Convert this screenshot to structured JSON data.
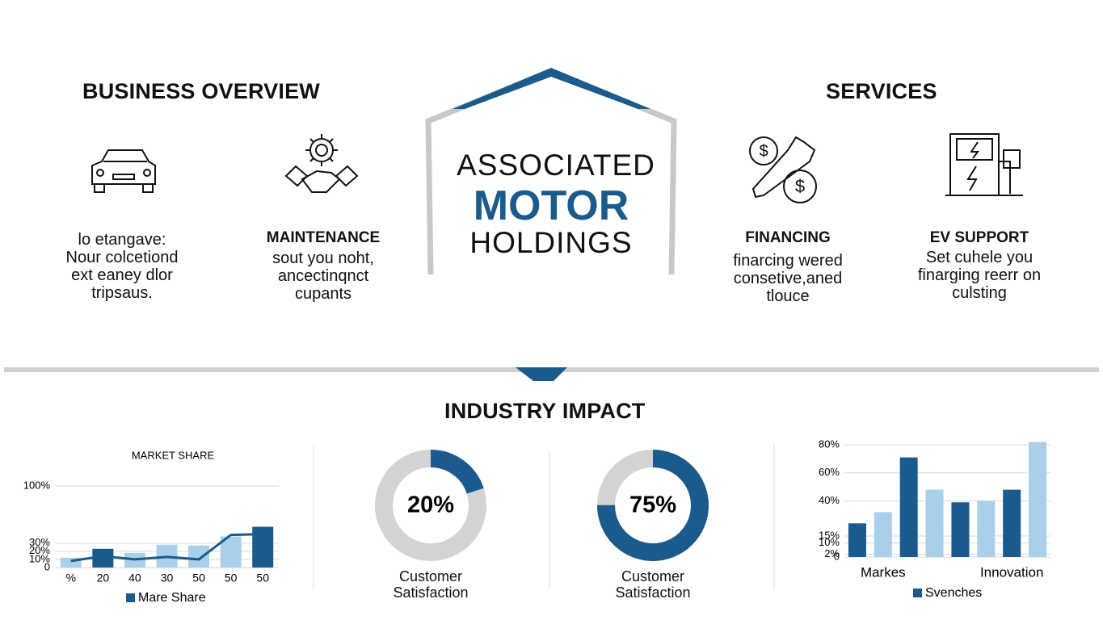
{
  "header": {
    "left_title": "BUSINESS OVERVIEW",
    "right_title": "SERVICES",
    "logo": [
      "ASSOCIATED",
      "MOTOR",
      "HOLDINGS"
    ]
  },
  "business_items": [
    {
      "lines": [
        "lo etangave:",
        "Nour colcetiond",
        "ext eaney dlor",
        "tripsaus."
      ]
    },
    {
      "title": "MAINTENANCE",
      "lines": [
        "sout you noht,",
        "ancectinqnct",
        "cupants"
      ]
    }
  ],
  "services": [
    {
      "title": "FINANCING",
      "lines": [
        "finarcing wered",
        "consetive,aned",
        "tlouce"
      ]
    },
    {
      "title": "EV SUPPORT",
      "lines": [
        "Set cuhele you",
        "finarging reerr on",
        "culsting"
      ]
    }
  ],
  "section_title": "INDUSTRY IMPACT",
  "chart_data": [
    {
      "type": "bar",
      "title": "MARKET SHARE",
      "categories": [
        "%",
        "20",
        "40",
        "30",
        "50",
        "50",
        "50"
      ],
      "series": [
        {
          "name": "Mare Share",
          "color": "#1b5a8c",
          "values": [
            12,
            23,
            18,
            28,
            27,
            38,
            50
          ],
          "colors": [
            "#a9d0ea",
            "#1b5a8c",
            "#a9d0ea",
            "#a9d0ea",
            "#a9d0ea",
            "#a9d0ea",
            "#1b5a8c"
          ]
        },
        {
          "type": "line",
          "color": "#1b5a8c",
          "values": [
            8,
            14,
            10,
            13,
            10,
            40,
            41
          ]
        }
      ],
      "ylim": [
        0,
        100
      ],
      "yticks": [
        0,
        {
          "value": 10,
          "label": "10%"
        },
        {
          "value": 20,
          "label": "20%"
        },
        {
          "value": 30,
          "label": "30%"
        },
        {
          "value": 100,
          "label": "100%"
        }
      ],
      "grid": true
    },
    {
      "type": "donut",
      "values": [
        20
      ],
      "value_labels": [
        "20%"
      ],
      "label": "Customer Satisfaction",
      "color": "#1b5a8c"
    },
    {
      "type": "donut",
      "values": [
        75
      ],
      "value_labels": [
        "75%"
      ],
      "label": "Customer Satisfaction",
      "color": "#1b5a8c"
    },
    {
      "type": "bar",
      "categories": [
        null,
        "Markes",
        null,
        null,
        null,
        null,
        "Innovation",
        null
      ],
      "series": [
        {
          "name": "Svenches",
          "color": "#1b5a8c",
          "values": [
            24,
            32,
            71,
            48,
            39,
            40,
            48,
            82
          ],
          "colors": [
            "#1b5a8c",
            "#a9d0ea",
            "#1b5a8c",
            "#a9d0ea",
            "#1b5a8c",
            "#a9d0ea",
            "#1b5a8c",
            "#a9d0ea"
          ]
        }
      ],
      "ylim": [
        0,
        80
      ],
      "yticks": [
        0,
        {
          "value": 2,
          "label": "2%"
        },
        {
          "value": 15,
          "label": "15%"
        },
        {
          "value": 10,
          "label": "10%"
        },
        {
          "value": 40,
          "label": "40%"
        },
        {
          "value": 60,
          "label": "60%"
        },
        {
          "value": 80,
          "label": "80%"
        }
      ],
      "grid": true
    }
  ]
}
